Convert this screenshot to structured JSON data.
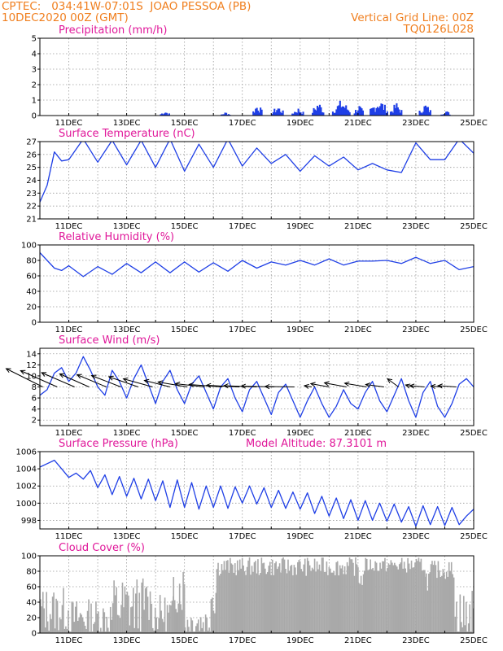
{
  "header": {
    "line1_left": "CPTEC:   034:41W-07:01S  JOAO PESSOA (PB)",
    "line2_left": "10DEC2020 00Z (GMT)",
    "line1_right": "Vertical Grid Line: 00Z",
    "line2_right": "TQ0126L028"
  },
  "colors": {
    "header": "#f07f1f",
    "title": "#e0189a",
    "line": "#1f3fe6",
    "bars": "#1f3fe6",
    "cloud": "#a9a9a9",
    "grid": "#9a9a9a"
  },
  "chart_data": [
    {
      "id": "precip",
      "type": "bar",
      "title": "Precipitation (mm/h)",
      "ylim": [
        0,
        5
      ],
      "yticks": [
        0,
        1,
        2,
        3,
        4,
        5
      ],
      "x_unit": "days after 10DEC2020 00Z",
      "xlim": [
        0,
        15
      ],
      "xtick_labels": [
        "11DEC",
        "13DEC",
        "15DEC",
        "17DEC",
        "19DEC",
        "21DEC",
        "23DEC",
        "25DEC"
      ],
      "xtick_days": [
        1,
        3,
        5,
        7,
        9,
        11,
        13,
        15
      ],
      "events": [
        {
          "day": 4.3,
          "width": 0.3,
          "peak": 0.35
        },
        {
          "day": 6.4,
          "width": 0.3,
          "peak": 0.25
        },
        {
          "day": 7.5,
          "width": 0.3,
          "peak": 0.9
        },
        {
          "day": 8.2,
          "width": 0.4,
          "peak": 0.7
        },
        {
          "day": 8.9,
          "width": 0.4,
          "peak": 0.55
        },
        {
          "day": 9.6,
          "width": 0.4,
          "peak": 1.0
        },
        {
          "day": 10.4,
          "width": 0.6,
          "peak": 1.1
        },
        {
          "day": 11.0,
          "width": 0.3,
          "peak": 0.8
        },
        {
          "day": 11.7,
          "width": 0.6,
          "peak": 1.2
        },
        {
          "day": 12.3,
          "width": 0.4,
          "peak": 0.9
        },
        {
          "day": 13.3,
          "width": 0.4,
          "peak": 0.85
        },
        {
          "day": 14.0,
          "width": 0.3,
          "peak": 0.4
        }
      ]
    },
    {
      "id": "temp",
      "type": "line",
      "title": "Surface Temperature (nC)",
      "ylim": [
        21,
        27
      ],
      "yticks": [
        21,
        22,
        23,
        24,
        25,
        26,
        27
      ],
      "x_unit": "days after 10DEC2020 00Z",
      "xlim": [
        0,
        15
      ],
      "xtick_labels": [
        "11DEC",
        "13DEC",
        "15DEC",
        "17DEC",
        "19DEC",
        "21DEC",
        "23DEC",
        "25DEC"
      ],
      "xtick_days": [
        1,
        3,
        5,
        7,
        9,
        11,
        13,
        15
      ],
      "x": [
        0,
        0.25,
        0.5,
        0.75,
        1,
        1.5,
        2,
        2.5,
        3,
        3.5,
        4,
        4.5,
        5,
        5.5,
        6,
        6.5,
        7,
        7.5,
        8,
        8.5,
        9,
        9.5,
        10,
        10.5,
        11,
        11.5,
        12,
        12.5,
        13,
        13.5,
        14,
        14.5,
        15
      ],
      "y": [
        22.3,
        23.6,
        26.2,
        25.5,
        25.6,
        27.2,
        25.4,
        27.1,
        25.2,
        27.1,
        25.0,
        27.2,
        24.7,
        26.8,
        25.0,
        27.2,
        25.1,
        26.5,
        25.3,
        26.0,
        24.7,
        25.9,
        25.1,
        25.8,
        24.8,
        25.3,
        24.8,
        24.6,
        26.9,
        25.6,
        25.6,
        27.2,
        26.1
      ]
    },
    {
      "id": "rh",
      "type": "line",
      "title": "Relative Humidity (%)",
      "ylim": [
        0,
        100
      ],
      "yticks": [
        0,
        20,
        40,
        60,
        80,
        100
      ],
      "x_unit": "days after 10DEC2020 00Z",
      "xlim": [
        0,
        15
      ],
      "xtick_labels": [
        "11DEC",
        "13DEC",
        "15DEC",
        "17DEC",
        "19DEC",
        "21DEC",
        "23DEC",
        "25DEC"
      ],
      "xtick_days": [
        1,
        3,
        5,
        7,
        9,
        11,
        13,
        15
      ],
      "x": [
        0,
        0.25,
        0.5,
        0.75,
        1,
        1.5,
        2,
        2.5,
        3,
        3.5,
        4,
        4.5,
        5,
        5.5,
        6,
        6.5,
        7,
        7.5,
        8,
        8.5,
        9,
        9.5,
        10,
        10.5,
        11,
        11.5,
        12,
        12.5,
        13,
        13.5,
        14,
        14.5,
        15
      ],
      "y": [
        90,
        80,
        70,
        67,
        73,
        59,
        72,
        62,
        76,
        64,
        78,
        64,
        78,
        65,
        77,
        66,
        80,
        70,
        78,
        74,
        80,
        74,
        82,
        74,
        79,
        79,
        80,
        76,
        84,
        76,
        80,
        68,
        72
      ]
    },
    {
      "id": "wind",
      "type": "line",
      "title": "Surface Wind (m/s)",
      "ylim": [
        1,
        15
      ],
      "yticks": [
        2,
        4,
        6,
        8,
        10,
        12,
        14
      ],
      "x_unit": "days after 10DEC2020 00Z",
      "xlim": [
        0,
        15
      ],
      "xtick_labels": [
        "11DEC",
        "13DEC",
        "15DEC",
        "17DEC",
        "19DEC",
        "21DEC",
        "23DEC",
        "25DEC"
      ],
      "xtick_days": [
        1,
        3,
        5,
        7,
        9,
        11,
        13,
        15
      ],
      "x": [
        0,
        0.25,
        0.5,
        0.75,
        1,
        1.25,
        1.5,
        1.75,
        2,
        2.25,
        2.5,
        2.75,
        3,
        3.25,
        3.5,
        3.75,
        4,
        4.25,
        4.5,
        4.75,
        5,
        5.25,
        5.5,
        5.75,
        6,
        6.25,
        6.5,
        6.75,
        7,
        7.25,
        7.5,
        7.75,
        8,
        8.25,
        8.5,
        8.75,
        9,
        9.25,
        9.5,
        9.75,
        10,
        10.25,
        10.5,
        10.75,
        11,
        11.25,
        11.5,
        11.75,
        12,
        12.25,
        12.5,
        12.75,
        13,
        13.25,
        13.5,
        13.75,
        14,
        14.25,
        14.5,
        14.75,
        15
      ],
      "y": [
        6.5,
        7.5,
        10.5,
        11.5,
        9.0,
        10.5,
        13.5,
        11.0,
        8.0,
        6.5,
        11.0,
        9.0,
        6.0,
        9.5,
        12.0,
        8.5,
        5.0,
        9.0,
        11.0,
        7.5,
        5.0,
        8.5,
        10.0,
        7.0,
        4.0,
        8.0,
        9.5,
        6.0,
        3.5,
        7.5,
        9.0,
        6.0,
        3.0,
        7.0,
        8.5,
        5.5,
        2.5,
        5.5,
        8.0,
        5.0,
        2.5,
        4.5,
        7.5,
        5.0,
        4.0,
        7.0,
        9.0,
        5.5,
        3.5,
        6.5,
        9.5,
        5.5,
        2.5,
        7.0,
        9.0,
        4.5,
        2.5,
        5.0,
        8.5,
        9.5,
        8.0
      ],
      "arrows": [
        {
          "day": 0.1,
          "u": -5.0,
          "v": 4.5
        },
        {
          "day": 0.6,
          "u": -5.0,
          "v": 4.0
        },
        {
          "day": 1.2,
          "u": -4.5,
          "v": 3.5
        },
        {
          "day": 1.7,
          "u": -4.0,
          "v": 3.2
        },
        {
          "day": 2.3,
          "u": -4.0,
          "v": 3.0
        },
        {
          "day": 2.8,
          "u": -4.0,
          "v": 2.8
        },
        {
          "day": 3.4,
          "u": -4.0,
          "v": 2.5
        },
        {
          "day": 3.9,
          "u": -4.0,
          "v": 2.0
        },
        {
          "day": 4.5,
          "u": -3.5,
          "v": 1.6
        },
        {
          "day": 5.1,
          "u": -4.0,
          "v": 1.2
        },
        {
          "day": 5.7,
          "u": -4.0,
          "v": 0.8
        },
        {
          "day": 6.3,
          "u": -4.5,
          "v": 0.6
        },
        {
          "day": 6.9,
          "u": -4.5,
          "v": 0.4
        },
        {
          "day": 7.5,
          "u": -4.5,
          "v": 0.3
        },
        {
          "day": 8.1,
          "u": -4.5,
          "v": 0.2
        },
        {
          "day": 8.8,
          "u": -4.0,
          "v": 0.1
        },
        {
          "day": 9.4,
          "u": -1.0,
          "v": 0.3
        },
        {
          "day": 10.0,
          "u": -2.5,
          "v": 0.8
        },
        {
          "day": 10.6,
          "u": -3.0,
          "v": 1.0
        },
        {
          "day": 11.3,
          "u": -3.0,
          "v": 0.9
        },
        {
          "day": 11.9,
          "u": -2.5,
          "v": 0.6
        },
        {
          "day": 12.4,
          "u": -1.5,
          "v": 2.0
        },
        {
          "day": 12.9,
          "u": -1.0,
          "v": 0.5
        },
        {
          "day": 13.3,
          "u": -2.0,
          "v": 0.3
        },
        {
          "day": 13.9,
          "u": -1.5,
          "v": 0.2
        },
        {
          "day": 14.4,
          "u": -2.5,
          "v": 0.3
        }
      ]
    },
    {
      "id": "pres",
      "type": "line",
      "title": "Surface Pressure (hPa)",
      "annotation": "Model Altitude: 87.3101 m",
      "ylim": [
        997,
        1006
      ],
      "yticks": [
        998,
        1000,
        1002,
        1004,
        1006
      ],
      "x_unit": "days after 10DEC2020 00Z",
      "xlim": [
        0,
        15
      ],
      "xtick_labels": [
        "11DEC",
        "13DEC",
        "15DEC",
        "17DEC",
        "19DEC",
        "21DEC",
        "23DEC",
        "25DEC"
      ],
      "xtick_days": [
        1,
        3,
        5,
        7,
        9,
        11,
        13,
        15
      ],
      "x": [
        0,
        0.25,
        0.5,
        0.75,
        1,
        1.25,
        1.5,
        1.75,
        2,
        2.25,
        2.5,
        2.75,
        3,
        3.25,
        3.5,
        3.75,
        4,
        4.25,
        4.5,
        4.75,
        5,
        5.25,
        5.5,
        5.75,
        6,
        6.25,
        6.5,
        6.75,
        7,
        7.25,
        7.5,
        7.75,
        8,
        8.25,
        8.5,
        8.75,
        9,
        9.25,
        9.5,
        9.75,
        10,
        10.25,
        10.5,
        10.75,
        11,
        11.25,
        11.5,
        11.75,
        12,
        12.25,
        12.5,
        12.75,
        13,
        13.25,
        13.5,
        13.75,
        14,
        14.25,
        14.5,
        14.75,
        15
      ],
      "y": [
        1004.2,
        1004.6,
        1005.0,
        1004.0,
        1003.0,
        1003.5,
        1002.8,
        1003.8,
        1001.8,
        1003.3,
        1001.0,
        1003.1,
        1000.8,
        1002.9,
        1000.5,
        1002.8,
        1000.3,
        1002.6,
        999.5,
        1002.7,
        999.5,
        1002.4,
        999.3,
        1002.0,
        999.5,
        1002.0,
        999.4,
        1001.9,
        1000.0,
        1002.0,
        999.9,
        1001.8,
        999.5,
        1001.5,
        999.4,
        1001.3,
        999.3,
        1001.2,
        998.8,
        1000.8,
        998.5,
        1000.6,
        998.2,
        1000.4,
        998.0,
        1000.3,
        998.0,
        1000.0,
        997.9,
        999.9,
        997.8,
        999.6,
        997.3,
        999.7,
        997.5,
        999.6,
        997.4,
        999.5,
        997.5,
        998.5,
        999.3
      ]
    },
    {
      "id": "cloud",
      "type": "bar",
      "title": "Cloud Cover (%)",
      "ylim": [
        0,
        100
      ],
      "yticks": [
        0,
        20,
        40,
        60,
        80,
        100
      ],
      "x_unit": "days after 10DEC2020 00Z",
      "xlim": [
        0,
        15
      ],
      "xtick_labels": [
        "11DEC",
        "13DEC",
        "15DEC",
        "17DEC",
        "19DEC",
        "21DEC",
        "23DEC",
        "25DEC"
      ],
      "xtick_days": [
        1,
        3,
        5,
        7,
        9,
        11,
        13,
        15
      ],
      "segments": [
        {
          "from": 0.0,
          "to": 1.0,
          "base": 30,
          "amp": 30
        },
        {
          "from": 1.0,
          "to": 2.5,
          "base": 20,
          "amp": 25
        },
        {
          "from": 2.5,
          "to": 3.8,
          "base": 35,
          "amp": 40
        },
        {
          "from": 3.8,
          "to": 4.6,
          "base": 25,
          "amp": 25
        },
        {
          "from": 4.6,
          "to": 5.0,
          "base": 60,
          "amp": 35
        },
        {
          "from": 5.0,
          "to": 5.9,
          "base": 15,
          "amp": 20
        },
        {
          "from": 5.9,
          "to": 6.1,
          "base": 50,
          "amp": 30
        },
        {
          "from": 6.1,
          "to": 11.0,
          "base": 86,
          "amp": 12
        },
        {
          "from": 11.0,
          "to": 11.2,
          "base": 70,
          "amp": 10
        },
        {
          "from": 11.2,
          "to": 13.3,
          "base": 88,
          "amp": 10
        },
        {
          "from": 13.3,
          "to": 13.5,
          "base": 70,
          "amp": 15
        },
        {
          "from": 13.5,
          "to": 14.3,
          "base": 82,
          "amp": 12
        },
        {
          "from": 14.3,
          "to": 15.0,
          "base": 20,
          "amp": 40
        }
      ]
    }
  ]
}
